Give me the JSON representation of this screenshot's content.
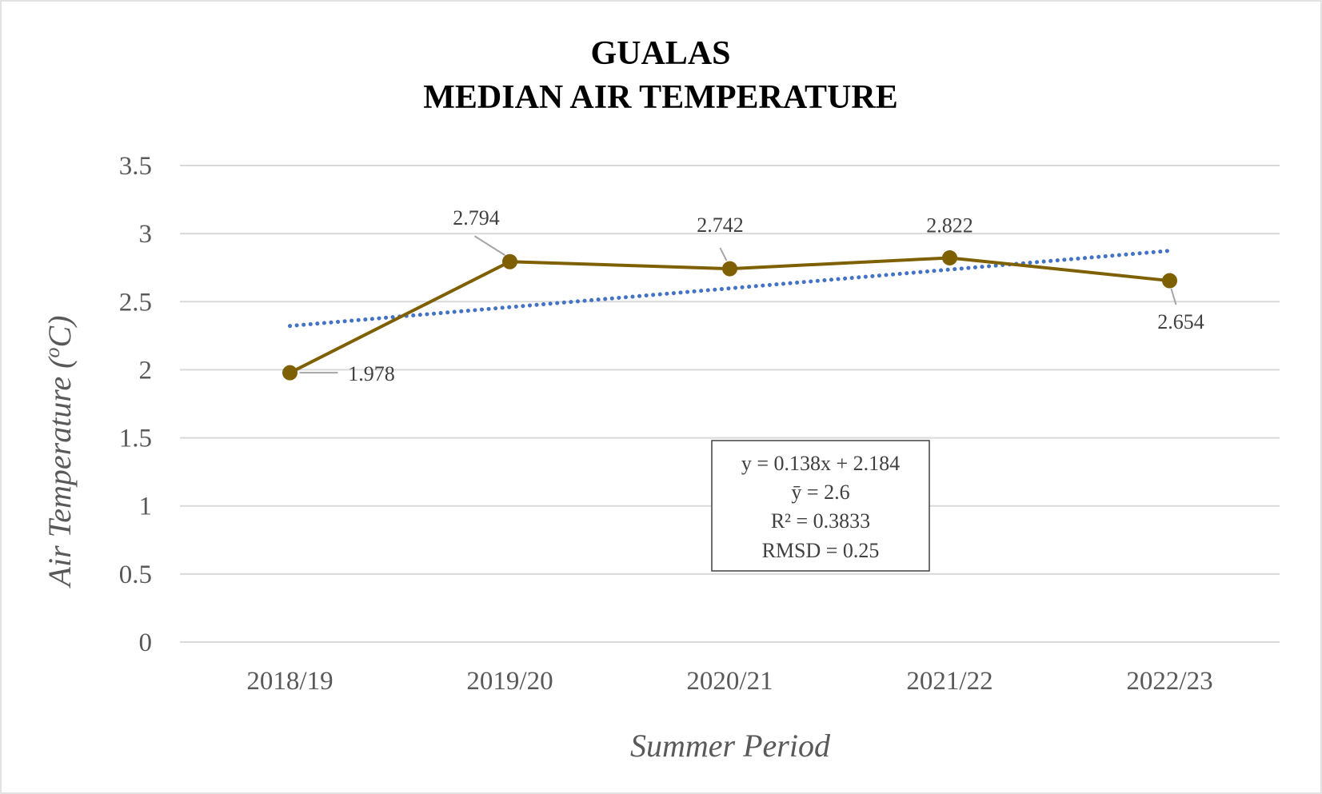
{
  "chart_data": {
    "type": "line",
    "title_lines": [
      "GUALAS",
      "MEDIAN AIR TEMPERATURE"
    ],
    "xlabel": "Summer Period",
    "ylabel_main": "Air Temperature (",
    "ylabel_sup": "o",
    "ylabel_end": "C)",
    "categories": [
      "2018/19",
      "2019/20",
      "2020/21",
      "2021/22",
      "2022/23"
    ],
    "series": [
      {
        "values": [
          1.978,
          2.794,
          2.742,
          2.822,
          2.654
        ],
        "data_labels": [
          "1.978",
          "2.794",
          "2.742",
          "2.822",
          "2.654"
        ],
        "color": "#7f6000"
      }
    ],
    "trendline": {
      "type": "linear",
      "slope": 0.138,
      "intercept": 2.184,
      "color": "#4472c4",
      "style": "dotted"
    },
    "equation_box": [
      "y = 0.138x + 2.184",
      "ȳ = 2.6",
      "R² = 0.3833",
      "RMSD = 0.25"
    ],
    "ylim": [
      0,
      3.5
    ],
    "yticks": [
      0,
      0.5,
      1,
      1.5,
      2,
      2.5,
      3,
      3.5
    ],
    "ytick_labels": [
      "0",
      "0.5",
      "1",
      "1.5",
      "2",
      "2.5",
      "3",
      "3.5"
    ],
    "grid": true,
    "gridline_color": "#d9d9d9",
    "legend": "none"
  }
}
